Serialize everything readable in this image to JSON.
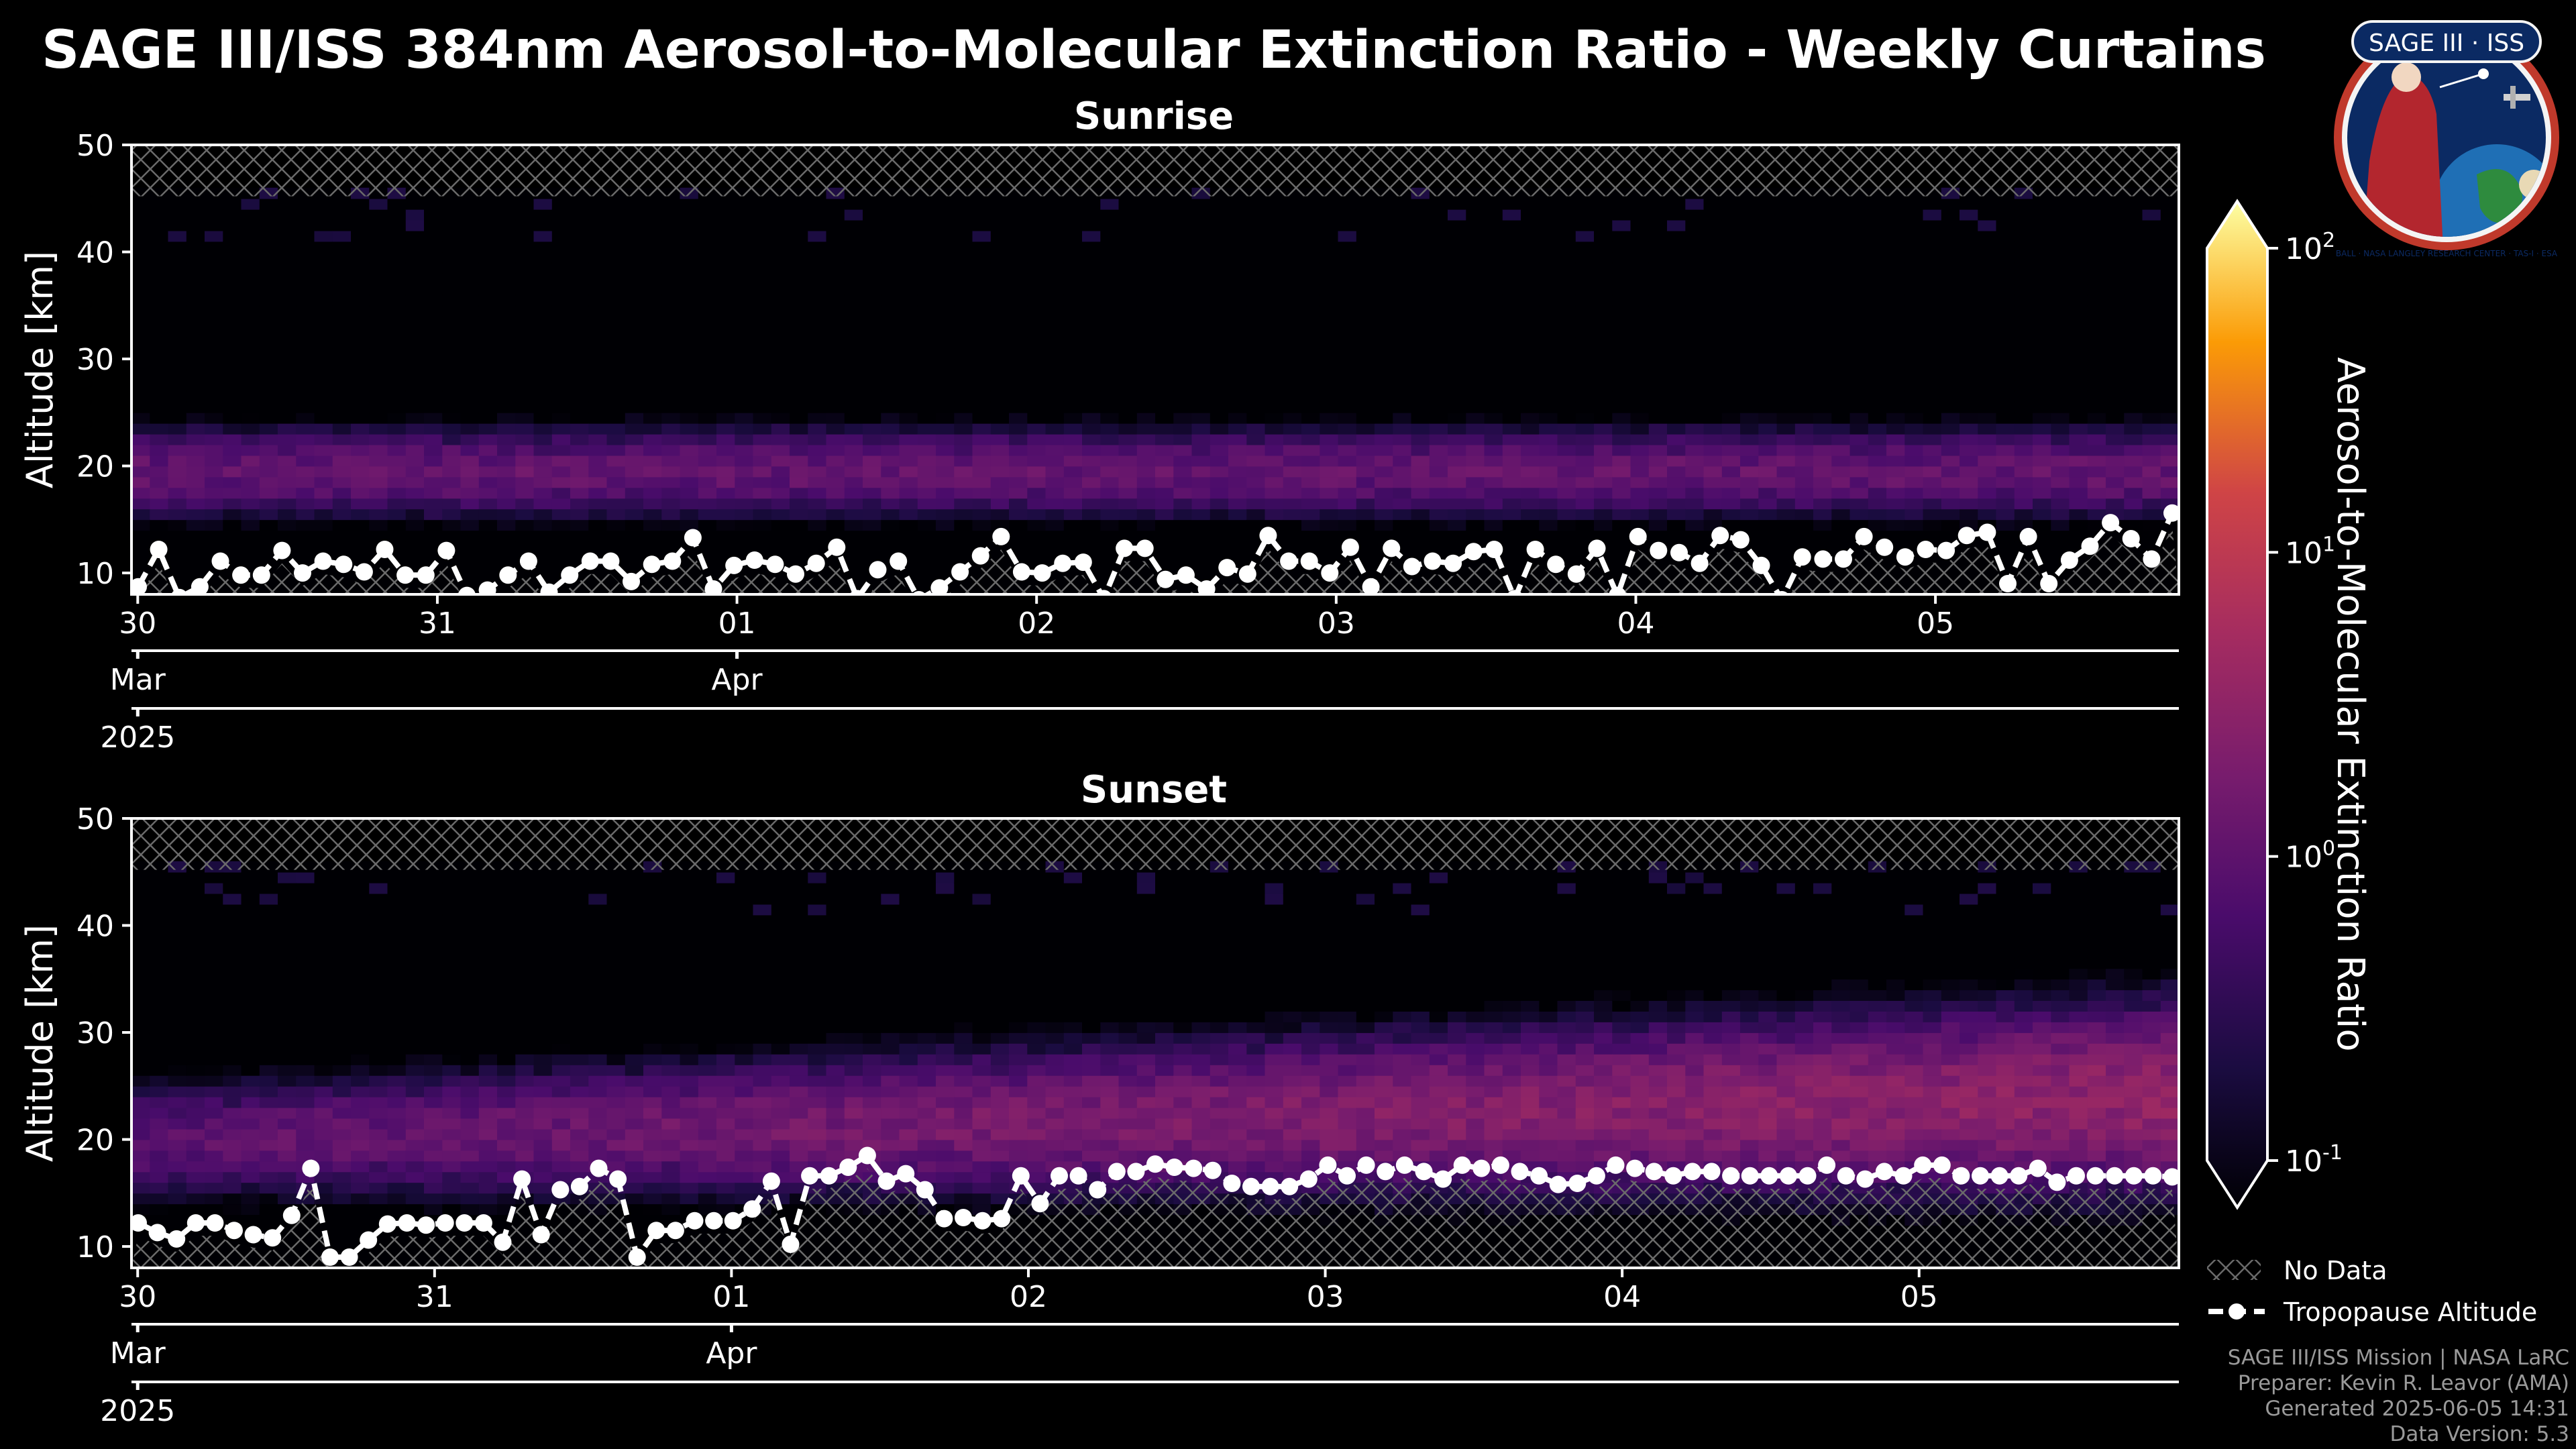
{
  "title": "SAGE III/ISS 384nm Aerosol-to-Molecular Extinction Ratio - Weekly Curtains",
  "panels": [
    {
      "subtitle": "Sunrise",
      "ylabel": "Altitude [km]"
    },
    {
      "subtitle": "Sunset",
      "ylabel": "Altitude [km]"
    }
  ],
  "colorbar": {
    "label": "Aerosol-to-Molecular Extinction Ratio",
    "ticks": [
      {
        "base": "10",
        "exp": "2"
      },
      {
        "base": "10",
        "exp": "1"
      },
      {
        "base": "10",
        "exp": "0"
      },
      {
        "base": "10",
        "exp": "-1"
      }
    ],
    "colormap": "inferno",
    "scale": "log",
    "range": [
      0.1,
      100
    ]
  },
  "legend": {
    "no_data": "No Data",
    "tropopause": "Tropopause Altitude"
  },
  "footer": {
    "line1": "SAGE III/ISS Mission | NASA LaRC",
    "line2": "Preparer: Kevin R. Leavor (AMA)",
    "line3": "Generated 2025-06-05 14:31",
    "line4": "Data Version: 5.3"
  },
  "logo": {
    "text": "SAGE III · ISS",
    "ring_text": "BALL · NASA LANGLEY RESEARCH CENTER · TAS-I · ESA"
  },
  "colors": {
    "background": "#000000",
    "tropopause": "#ffffff",
    "hatch": "#6a6a6a"
  },
  "chart_data": [
    {
      "type": "heatmap",
      "title": "Sunrise",
      "ylabel": "Altitude [km]",
      "ylim": [
        8,
        50
      ],
      "yticks": [
        "10",
        "20",
        "30",
        "40",
        "50"
      ],
      "x_day_ticks": [
        "30",
        "31",
        "01",
        "02",
        "03",
        "04",
        "05"
      ],
      "x_month_ticks": [
        "Mar",
        "Apr"
      ],
      "x_year_ticks": [
        "2025"
      ],
      "xlim": [
        "2025-03-29T23:30",
        "2025-04-05T19:30"
      ],
      "no_data_above_km": 45.2,
      "aerosol_layer": {
        "center_km_start": 19.5,
        "center_km_end": 19.5,
        "half_width_km": 4,
        "peak_ratio": 0.7
      },
      "tropopause_km": [
        8.7,
        12.2,
        7.7,
        8.7,
        11.1,
        9.8,
        9.8,
        12.1,
        10.0,
        11.1,
        10.8,
        10.1,
        12.2,
        9.8,
        9.8,
        12.1,
        7.9,
        8.4,
        9.8,
        11.1,
        8.2,
        9.8,
        11.1,
        11.1,
        9.2,
        10.8,
        11.1,
        13.3,
        8.5,
        10.7,
        11.2,
        10.8,
        9.9,
        10.9,
        12.4,
        7.6,
        10.3,
        11.1,
        7.5,
        8.6,
        10.1,
        11.6,
        13.4,
        10.1,
        10.0,
        10.9,
        11.0,
        7.6,
        12.3,
        12.3,
        9.4,
        9.8,
        8.5,
        10.5,
        9.9,
        13.5,
        11.1,
        11.1,
        10.0,
        12.4,
        8.7,
        12.3,
        10.6,
        11.1,
        10.9,
        12.0,
        12.2,
        7.6,
        12.2,
        10.8,
        9.9,
        12.3,
        7.9,
        13.4,
        12.1,
        11.9,
        10.9,
        13.5,
        13.1,
        10.7,
        7.5,
        11.5,
        11.3,
        11.3,
        13.4,
        12.4,
        11.5,
        12.2,
        12.1,
        13.5,
        13.8,
        9.0,
        13.4,
        9.0,
        11.2,
        12.5,
        14.7,
        13.2,
        11.3,
        15.6
      ]
    },
    {
      "type": "heatmap",
      "title": "Sunset",
      "ylabel": "Altitude [km]",
      "ylim": [
        8,
        50
      ],
      "yticks": [
        "10",
        "20",
        "30",
        "40",
        "50"
      ],
      "x_day_ticks": [
        "30",
        "31",
        "01",
        "02",
        "03",
        "04",
        "05"
      ],
      "x_month_ticks": [
        "Mar",
        "Apr"
      ],
      "x_year_ticks": [
        "2025"
      ],
      "xlim": [
        "2025-03-29T23:30",
        "2025-04-05T21:00"
      ],
      "no_data_above_km": 45.2,
      "aerosol_layer": {
        "center_km_start": 20,
        "center_km_end": 24,
        "half_width_km_start": 5,
        "half_width_km_end": 8,
        "peak_ratio_start": 0.6,
        "peak_ratio_end": 1.5
      },
      "tropopause_km": [
        12.2,
        11.3,
        10.7,
        12.2,
        12.2,
        11.5,
        11.1,
        10.8,
        12.9,
        17.3,
        9.0,
        9.0,
        10.6,
        12.1,
        12.2,
        12.0,
        12.2,
        12.2,
        12.2,
        10.4,
        16.3,
        11.1,
        15.3,
        15.6,
        17.3,
        16.3,
        9.0,
        11.5,
        11.5,
        12.4,
        12.4,
        12.4,
        13.5,
        16.1,
        10.2,
        16.6,
        16.6,
        17.4,
        18.5,
        16.1,
        16.8,
        15.3,
        12.6,
        12.7,
        12.4,
        12.6,
        16.6,
        14.0,
        16.6,
        16.6,
        15.3,
        17.0,
        17.0,
        17.7,
        17.4,
        17.3,
        17.1,
        15.9,
        15.6,
        15.6,
        15.6,
        16.3,
        17.6,
        16.6,
        17.6,
        17.0,
        17.6,
        17.0,
        16.3,
        17.6,
        17.3,
        17.6,
        17.0,
        16.6,
        15.8,
        15.9,
        16.6,
        17.6,
        17.3,
        17.0,
        16.6,
        17.0,
        17.0,
        16.6,
        16.6,
        16.6,
        16.6,
        16.6,
        17.6,
        16.6,
        16.3,
        17.0,
        16.6,
        17.6,
        17.6,
        16.6,
        16.6,
        16.6,
        16.6,
        17.3,
        16.0,
        16.6,
        16.6,
        16.6,
        16.6,
        16.6,
        16.5
      ]
    }
  ]
}
